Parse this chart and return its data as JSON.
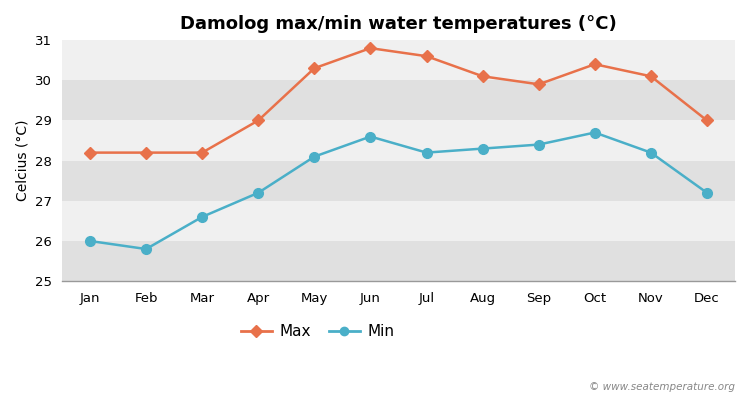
{
  "months": [
    "Jan",
    "Feb",
    "Mar",
    "Apr",
    "May",
    "Jun",
    "Jul",
    "Aug",
    "Sep",
    "Oct",
    "Nov",
    "Dec"
  ],
  "max_temps": [
    28.2,
    28.2,
    28.2,
    29.0,
    30.3,
    30.8,
    30.6,
    30.1,
    29.9,
    30.4,
    30.1,
    29.0
  ],
  "min_temps": [
    26.0,
    25.8,
    26.6,
    27.2,
    28.1,
    28.6,
    28.2,
    28.3,
    28.4,
    28.7,
    28.2,
    27.2
  ],
  "max_color": "#e8714a",
  "min_color": "#4aafc8",
  "title": "Damolog max/min water temperatures (°C)",
  "ylabel": "Celcius (°C)",
  "ylim": [
    25,
    31
  ],
  "yticks": [
    25,
    26,
    27,
    28,
    29,
    30,
    31
  ],
  "bg_color": "#ffffff",
  "plot_bg_light": "#f0f0f0",
  "plot_bg_dark": "#e0e0e0",
  "watermark": "© www.seatemperature.org",
  "title_fontsize": 13,
  "label_fontsize": 10,
  "tick_fontsize": 9.5
}
